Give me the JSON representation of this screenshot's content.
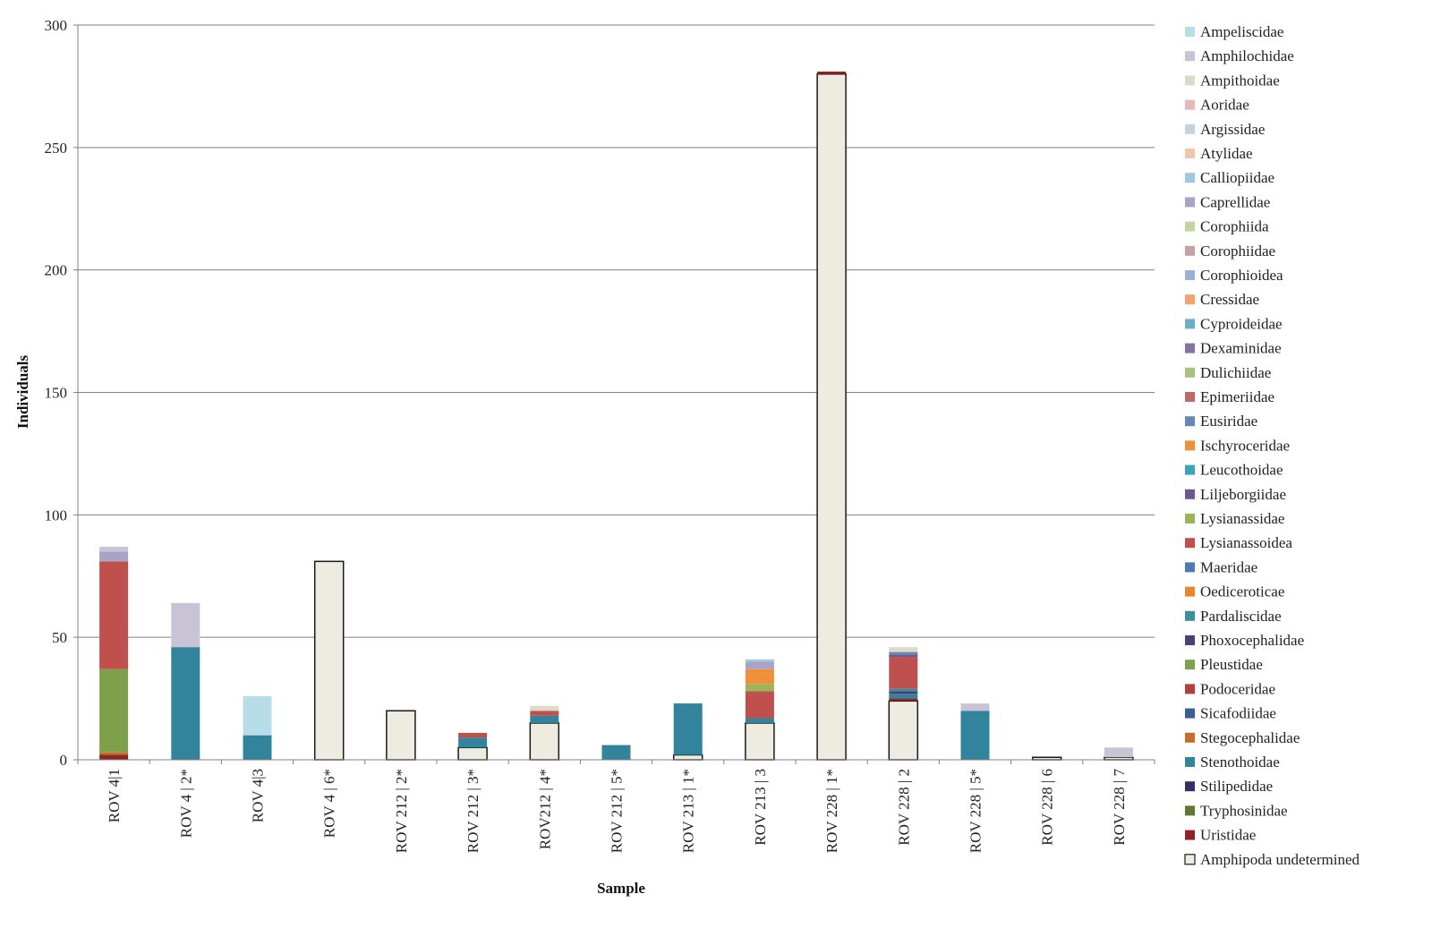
{
  "chart_data": {
    "type": "bar",
    "stacked": true,
    "xlabel": "Sample",
    "ylabel": "Individuals",
    "ylim": [
      0,
      300
    ],
    "yticks": [
      0,
      50,
      100,
      150,
      200,
      250,
      300
    ],
    "grid": true,
    "legend_position": "right",
    "categories": [
      "ROV 4|1",
      "ROV 4 | 2*",
      "ROV 4|3",
      "ROV 4 | 6*",
      "ROV 212 | 2*",
      "ROV 212 | 3*",
      "ROV212 | 4*",
      "ROV 212 | 5*",
      "ROV 213 | 1*",
      "ROV 213 | 3",
      "ROV 228 | 1*",
      "ROV 228 | 2",
      "ROV 228 | 5*",
      "ROV 228 | 6",
      "ROV 228 | 7"
    ],
    "series": [
      {
        "name": "Ampeliscidae",
        "color": "#b7dde8",
        "values": [
          0,
          0,
          16,
          0,
          0,
          0,
          0,
          0,
          0,
          0,
          0,
          0,
          0,
          0,
          0
        ]
      },
      {
        "name": "Amphilochidae",
        "color": "#c9c3d6",
        "values": [
          2,
          18,
          0,
          0,
          0,
          0,
          0,
          0,
          0,
          0,
          0,
          0,
          3,
          0,
          4
        ]
      },
      {
        "name": "Ampithoidae",
        "color": "#dcdcc6",
        "values": [
          0,
          0,
          0,
          0,
          0,
          0,
          2,
          0,
          0,
          0,
          0,
          2,
          0,
          0,
          0
        ]
      },
      {
        "name": "Aoridae",
        "color": "#e6b9b8",
        "values": [
          0,
          0,
          0,
          0,
          0,
          0,
          0,
          0,
          0,
          0,
          0,
          0,
          0,
          0,
          0
        ]
      },
      {
        "name": "Argissidae",
        "color": "#c5d2e2",
        "values": [
          0,
          0,
          0,
          0,
          0,
          0,
          0,
          0,
          0,
          0,
          0,
          0,
          0,
          0,
          0
        ]
      },
      {
        "name": "Atylidae",
        "color": "#f2c6a8",
        "values": [
          0,
          0,
          0,
          0,
          0,
          0,
          0,
          0,
          0,
          0,
          0,
          0,
          0,
          0,
          0
        ]
      },
      {
        "name": "Calliopiidae",
        "color": "#9fc7de",
        "values": [
          0,
          0,
          0,
          0,
          0,
          0,
          0,
          0,
          0,
          1,
          0,
          0,
          0,
          0,
          0
        ]
      },
      {
        "name": "Caprellidae",
        "color": "#a9a3c6",
        "values": [
          4,
          0,
          0,
          0,
          0,
          0,
          0,
          0,
          0,
          3,
          0,
          0,
          0,
          0,
          0
        ]
      },
      {
        "name": "Corophiida",
        "color": "#c2d6a0",
        "values": [
          0,
          0,
          0,
          0,
          0,
          0,
          0,
          0,
          0,
          0,
          0,
          0,
          0,
          0,
          0
        ]
      },
      {
        "name": "Corophiidae",
        "color": "#c8a2a2",
        "values": [
          0,
          0,
          0,
          0,
          0,
          0,
          0,
          0,
          0,
          0,
          0,
          0,
          0,
          0,
          0
        ]
      },
      {
        "name": "Corophioidea",
        "color": "#9fb0d6",
        "values": [
          0,
          0,
          0,
          0,
          0,
          0,
          0,
          0,
          0,
          0,
          0,
          0,
          0,
          0,
          0
        ]
      },
      {
        "name": "Cressidae",
        "color": "#f4a36c",
        "values": [
          0,
          0,
          0,
          0,
          0,
          0,
          0,
          0,
          0,
          0,
          0,
          0,
          0,
          0,
          0
        ]
      },
      {
        "name": "Cyproideidae",
        "color": "#69aec7",
        "values": [
          0,
          0,
          0,
          0,
          0,
          0,
          0,
          0,
          0,
          0,
          0,
          0,
          0,
          0,
          0
        ]
      },
      {
        "name": "Dexaminidae",
        "color": "#8673a6",
        "values": [
          0,
          0,
          0,
          0,
          0,
          0,
          0,
          0,
          0,
          0,
          0,
          0,
          0,
          0,
          0
        ]
      },
      {
        "name": "Dulichiidae",
        "color": "#a6c27c",
        "values": [
          0,
          0,
          0,
          0,
          0,
          0,
          0,
          0,
          0,
          0,
          0,
          0,
          0,
          0,
          0
        ]
      },
      {
        "name": "Epimeriidae",
        "color": "#c06868",
        "values": [
          0,
          0,
          0,
          0,
          0,
          0,
          0,
          0,
          0,
          0,
          0,
          0,
          0,
          0,
          0
        ]
      },
      {
        "name": "Eusiridae",
        "color": "#6687bb",
        "values": [
          0,
          0,
          0,
          0,
          0,
          0,
          0,
          0,
          0,
          0,
          0,
          1,
          0,
          0,
          0
        ]
      },
      {
        "name": "Ischyroceridae",
        "color": "#f0903a",
        "values": [
          0,
          0,
          0,
          0,
          0,
          0,
          0,
          0,
          0,
          6,
          0,
          0,
          0,
          0,
          0
        ]
      },
      {
        "name": "Leucothoidae",
        "color": "#3fa3b8",
        "values": [
          0,
          0,
          0,
          0,
          0,
          0,
          0,
          0,
          0,
          0,
          0,
          0,
          0,
          0,
          0
        ]
      },
      {
        "name": "Liljeborgiidae",
        "color": "#6a5a91",
        "values": [
          0,
          0,
          0,
          0,
          0,
          0,
          0,
          0,
          0,
          0,
          0,
          1,
          0,
          0,
          0
        ]
      },
      {
        "name": "Lysianassidae",
        "color": "#9bb55a",
        "values": [
          0,
          0,
          0,
          0,
          0,
          0,
          0,
          0,
          0,
          3,
          0,
          0,
          0,
          0,
          0
        ]
      },
      {
        "name": "Lysianassoidea",
        "color": "#c0504d",
        "values": [
          44,
          0,
          0,
          0,
          0,
          2,
          2,
          0,
          0,
          11,
          0,
          13,
          0,
          0,
          0
        ]
      },
      {
        "name": "Maeridae",
        "color": "#4f79b4",
        "values": [
          0,
          0,
          0,
          0,
          0,
          0,
          0,
          0,
          0,
          0,
          0,
          0,
          0,
          0,
          0
        ]
      },
      {
        "name": "Oediceroticae",
        "color": "#e8862a",
        "values": [
          0,
          0,
          0,
          0,
          0,
          0,
          0,
          0,
          0,
          0,
          0,
          0,
          0,
          0,
          0
        ]
      },
      {
        "name": "Pardaliscidae",
        "color": "#3a8f9f",
        "values": [
          0,
          0,
          0,
          0,
          0,
          0,
          0,
          0,
          0,
          0,
          0,
          1,
          0,
          0,
          0
        ]
      },
      {
        "name": "Phoxocephalidae",
        "color": "#4c3f78",
        "values": [
          0,
          0,
          0,
          0,
          0,
          0,
          0,
          0,
          0,
          0,
          0,
          1,
          0,
          0,
          0
        ]
      },
      {
        "name": "Pleustidae",
        "color": "#7fa04a",
        "values": [
          34,
          0,
          0,
          0,
          0,
          0,
          0,
          0,
          0,
          0,
          0,
          0,
          0,
          0,
          0
        ]
      },
      {
        "name": "Podoceridae",
        "color": "#b0403a",
        "values": [
          0,
          0,
          0,
          0,
          0,
          0,
          0,
          0,
          0,
          0,
          0,
          0,
          0,
          0,
          0
        ]
      },
      {
        "name": "Sicafodiidae",
        "color": "#375f94",
        "values": [
          0,
          0,
          0,
          0,
          0,
          0,
          0,
          0,
          0,
          0,
          0,
          0,
          0,
          0,
          0
        ]
      },
      {
        "name": "Stegocephalidae",
        "color": "#c86d28",
        "values": [
          1,
          0,
          0,
          0,
          0,
          0,
          0,
          0,
          0,
          0,
          0,
          0,
          0,
          0,
          0
        ]
      },
      {
        "name": "Stenothoidae",
        "color": "#31849b",
        "values": [
          0,
          46,
          10,
          0,
          0,
          4,
          3,
          6,
          21,
          2,
          0,
          2,
          20,
          0,
          0
        ]
      },
      {
        "name": "Stilipedidae",
        "color": "#3a2c6a",
        "values": [
          0,
          0,
          0,
          0,
          0,
          0,
          0,
          0,
          0,
          0,
          0,
          0,
          0,
          0,
          0
        ]
      },
      {
        "name": "Tryphosinidae",
        "color": "#5f7a2e",
        "values": [
          0,
          0,
          0,
          0,
          0,
          0,
          0,
          0,
          0,
          0,
          0,
          0,
          0,
          0,
          0
        ]
      },
      {
        "name": "Uristidae",
        "color": "#8e2424",
        "values": [
          2,
          0,
          0,
          0,
          0,
          0,
          0,
          0,
          0,
          0,
          1,
          1,
          0,
          0,
          0
        ]
      },
      {
        "name": "Amphipoda undetermined",
        "color": "#eeece1",
        "values": [
          0,
          0,
          0,
          81,
          20,
          5,
          15,
          0,
          2,
          15,
          280,
          24,
          0,
          1,
          1
        ]
      }
    ]
  }
}
